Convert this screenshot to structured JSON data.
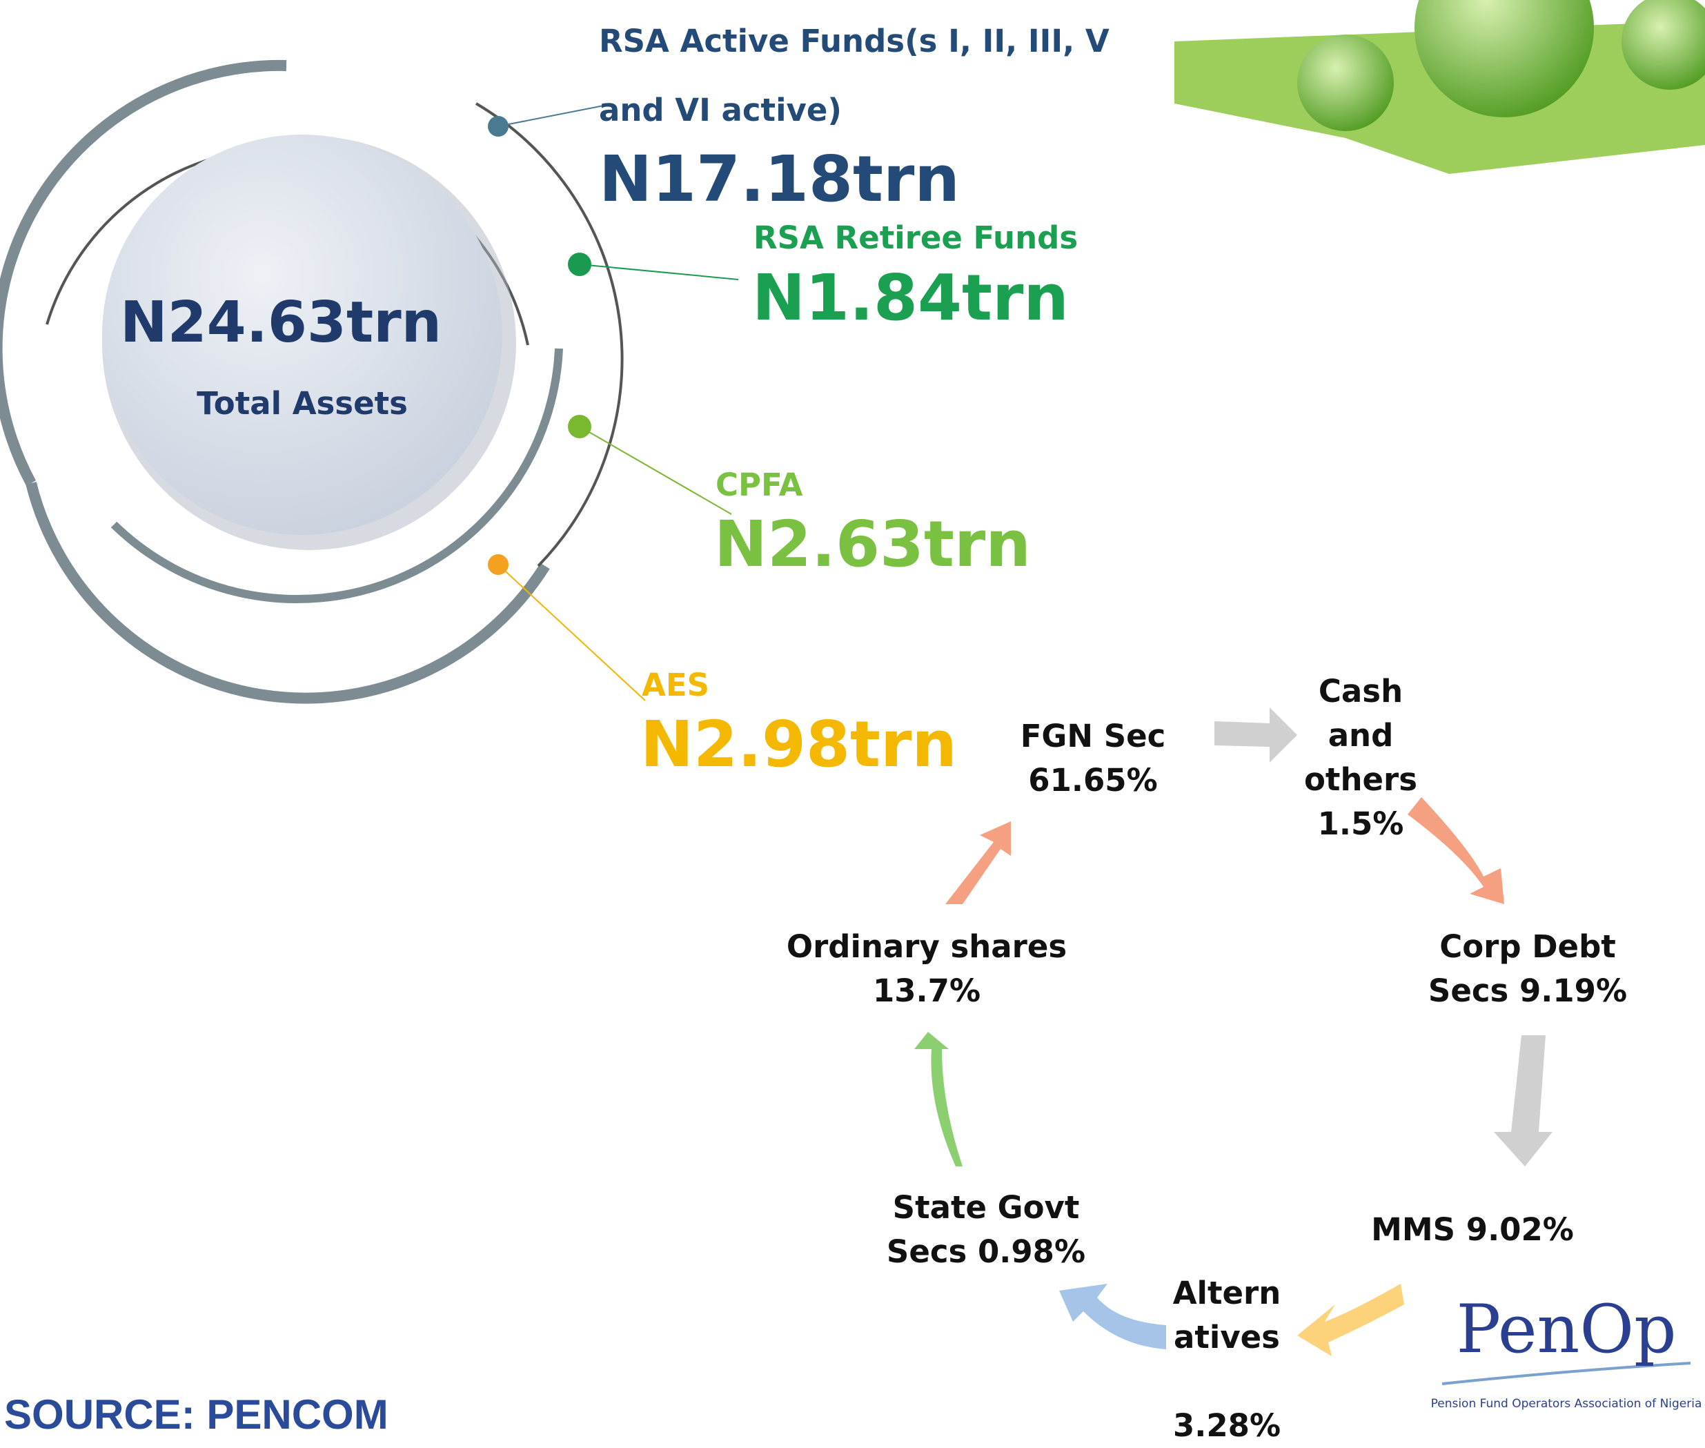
{
  "total": {
    "value": "N24.63trn",
    "label": "Total Assets"
  },
  "funds": [
    {
      "label": "RSA Active Funds(s I, II, III, V and VI active)",
      "value": "N17.18trn"
    },
    {
      "label": "RSA Retiree Funds",
      "value": "N1.84trn"
    },
    {
      "label": "CPFA",
      "value": "N2.63trn"
    },
    {
      "label": "AES",
      "value": "N2.98trn"
    }
  ],
  "allocation": [
    {
      "name": "FGN Sec",
      "value": "61.65%"
    },
    {
      "name": "Cash and others",
      "value": "1.5%"
    },
    {
      "name": "Corp Debt Secs",
      "value": "9.19%"
    },
    {
      "name": "MMS",
      "value": "9.02%"
    },
    {
      "name": "Altern atives",
      "value": "3.28%"
    },
    {
      "name": "State Govt Secs",
      "value": "0.98%"
    },
    {
      "name": "Ordinary shares",
      "value": "13.7%"
    }
  ],
  "source": "SOURCE: PENCOM",
  "logo": {
    "name": "PenOp",
    "tagline": "Pension Fund Operators Association of Nigeria"
  }
}
